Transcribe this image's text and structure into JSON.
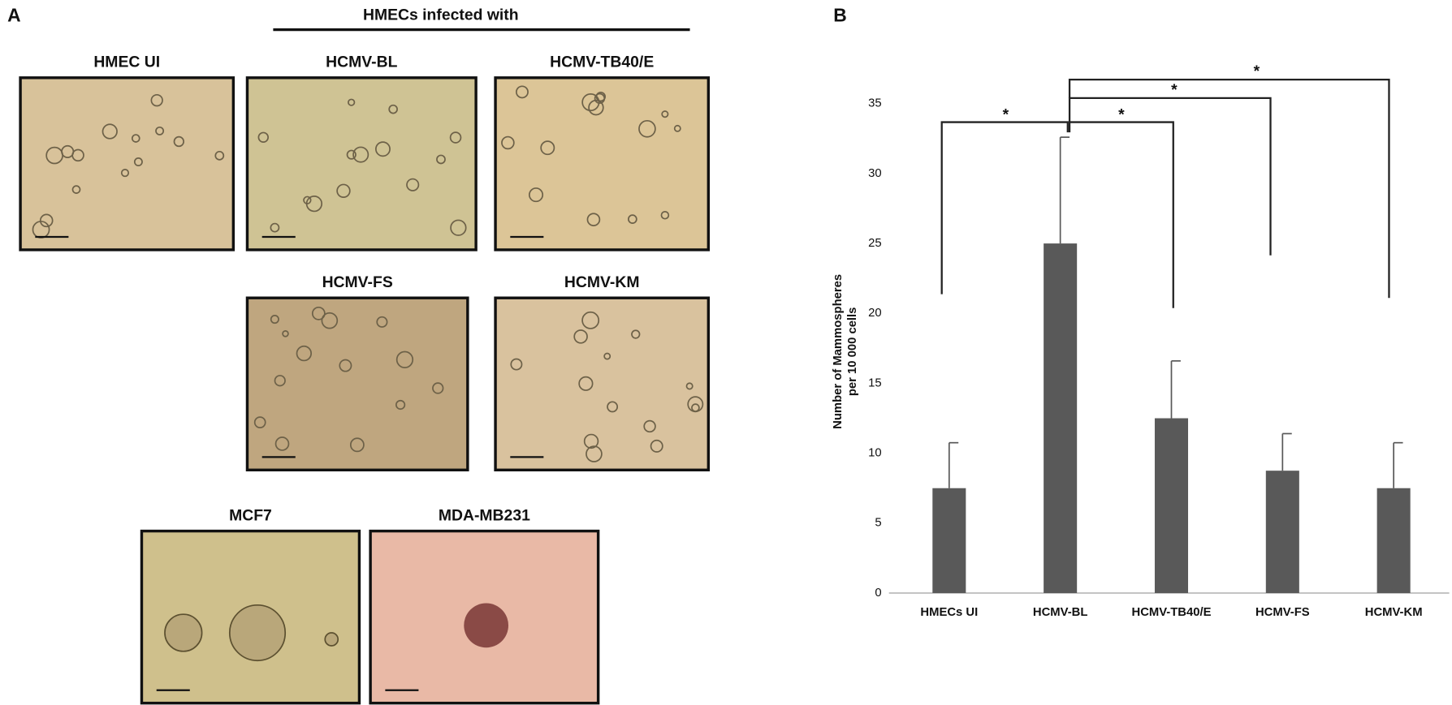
{
  "panels": {
    "a": {
      "label": "A",
      "group_label": "HMECs infected with",
      "images": [
        {
          "label": "HMEC UI"
        },
        {
          "label": "HCMV-BL"
        },
        {
          "label": "HCMV-TB40/E"
        },
        {
          "label": "HCMV-FS"
        },
        {
          "label": "HCMV-KM"
        },
        {
          "label": "MCF7"
        },
        {
          "label": "MDA-MB231"
        }
      ]
    },
    "b": {
      "label": "B"
    }
  },
  "chart_data": {
    "type": "bar",
    "y_label": [
      "Number of Mammospheres",
      "per 10 000 cells"
    ],
    "categories": [
      "HMECs UI",
      "HCMV-BL",
      "HCMV-TB40/E",
      "HCMV-FS",
      "HCMV-KM"
    ],
    "series": [
      {
        "color": "#595959",
        "values": [
          7.5,
          25,
          12.5,
          8.75,
          7.5
        ],
        "errors": [
          3.25,
          7.6,
          4.1,
          2.65,
          3.25
        ]
      }
    ],
    "ylim": [
      0,
      35
    ],
    "yticks": [
      0,
      5,
      10,
      15,
      20,
      25,
      30,
      35
    ],
    "grid": false,
    "annotations": [
      "*",
      "*",
      "*",
      "*"
    ]
  }
}
